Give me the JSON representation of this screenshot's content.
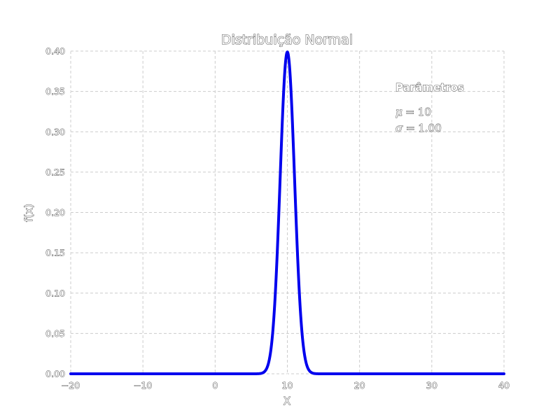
{
  "chart_data": {
    "type": "line",
    "title": "Distribuição Normal",
    "xlabel": "X",
    "ylabel": "f(x)",
    "xlim": [
      -20,
      40
    ],
    "ylim": [
      0,
      0.4
    ],
    "x_ticks": [
      -20,
      -10,
      0,
      10,
      20,
      30,
      40
    ],
    "y_ticks": [
      0.0,
      0.05,
      0.1,
      0.15,
      0.2,
      0.25,
      0.3,
      0.35,
      0.4
    ],
    "x_tick_labels": [
      "−20",
      "−10",
      "0",
      "10",
      "20",
      "30",
      "40"
    ],
    "y_tick_labels": [
      "0.00",
      "0.05",
      "0.10",
      "0.15",
      "0.20",
      "0.25",
      "0.30",
      "0.35",
      "0.40"
    ],
    "grid": true,
    "series": [
      {
        "color": "#0000ee",
        "distribution": "normal",
        "mu": 10,
        "sigma": 1.0,
        "x": [
          -20,
          5,
          6,
          6.5,
          7,
          7.5,
          8,
          8.5,
          9,
          9.5,
          10,
          10.5,
          11,
          11.5,
          12,
          12.5,
          13,
          13.5,
          14,
          15,
          40
        ],
        "y": [
          0,
          0.0,
          0.0001,
          0.0009,
          0.0044,
          0.0175,
          0.054,
          0.1295,
          0.242,
          0.3521,
          0.3989,
          0.3521,
          0.242,
          0.1295,
          0.054,
          0.0175,
          0.0044,
          0.0009,
          0.0001,
          0.0,
          0
        ]
      }
    ],
    "annotation": {
      "heading": "Parâmetros",
      "mu_symbol": "μ",
      "mu_value": "= 10",
      "sigma_symbol": "σ",
      "sigma_value": "= 1.00"
    }
  }
}
